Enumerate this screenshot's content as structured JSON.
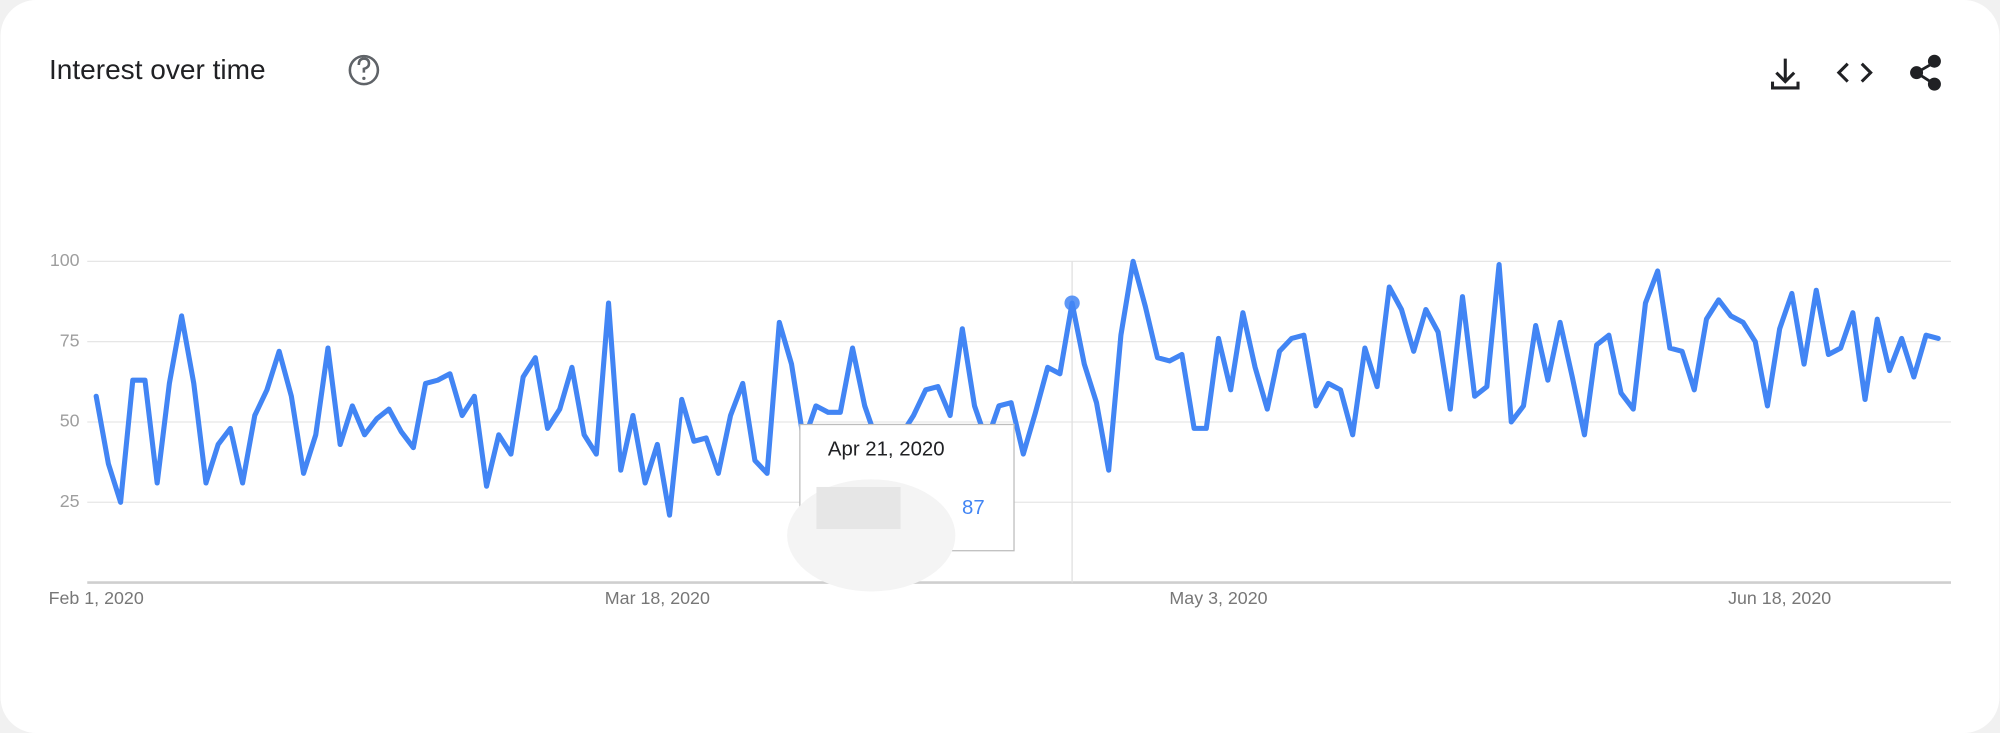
{
  "chart_data": {
    "type": "line",
    "title": "Interest over time",
    "color": "#4285f4",
    "grid": true,
    "x": [
      "2020-02-01",
      "2020-02-02",
      "2020-02-03",
      "2020-02-04",
      "2020-02-05",
      "2020-02-06",
      "2020-02-07",
      "2020-02-08",
      "2020-02-09",
      "2020-02-10",
      "2020-02-11",
      "2020-02-12",
      "2020-02-13",
      "2020-02-14",
      "2020-02-15",
      "2020-02-16",
      "2020-02-17",
      "2020-02-18",
      "2020-02-19",
      "2020-02-20",
      "2020-02-21",
      "2020-02-22",
      "2020-02-23",
      "2020-02-24",
      "2020-02-25",
      "2020-02-26",
      "2020-02-27",
      "2020-02-28",
      "2020-02-29",
      "2020-03-01",
      "2020-03-02",
      "2020-03-03",
      "2020-03-04",
      "2020-03-05",
      "2020-03-06",
      "2020-03-07",
      "2020-03-08",
      "2020-03-09",
      "2020-03-10",
      "2020-03-11",
      "2020-03-12",
      "2020-03-13",
      "2020-03-14",
      "2020-03-15",
      "2020-03-16",
      "2020-03-17",
      "2020-03-18",
      "2020-03-19",
      "2020-03-20",
      "2020-03-21",
      "2020-03-22",
      "2020-03-23",
      "2020-03-24",
      "2020-03-25",
      "2020-03-26",
      "2020-03-27",
      "2020-03-28",
      "2020-03-29",
      "2020-03-30",
      "2020-03-31",
      "2020-04-01",
      "2020-04-02",
      "2020-04-03",
      "2020-04-04",
      "2020-04-05",
      "2020-04-06",
      "2020-04-07",
      "2020-04-08",
      "2020-04-09",
      "2020-04-10",
      "2020-04-11",
      "2020-04-12",
      "2020-04-13",
      "2020-04-14",
      "2020-04-15",
      "2020-04-16",
      "2020-04-17",
      "2020-04-18",
      "2020-04-19",
      "2020-04-20",
      "2020-04-21",
      "2020-04-22",
      "2020-04-23",
      "2020-04-24",
      "2020-04-25",
      "2020-04-26",
      "2020-04-27",
      "2020-04-28",
      "2020-04-29",
      "2020-04-30",
      "2020-05-01",
      "2020-05-02",
      "2020-05-03",
      "2020-05-04",
      "2020-05-05",
      "2020-05-06",
      "2020-05-07",
      "2020-05-08",
      "2020-05-09",
      "2020-05-10",
      "2020-05-11",
      "2020-05-12",
      "2020-05-13",
      "2020-05-14",
      "2020-05-15",
      "2020-05-16",
      "2020-05-17",
      "2020-05-18",
      "2020-05-19",
      "2020-05-20",
      "2020-05-21",
      "2020-05-22",
      "2020-05-23",
      "2020-05-24",
      "2020-05-25",
      "2020-05-26",
      "2020-05-27",
      "2020-05-28",
      "2020-05-29",
      "2020-05-30",
      "2020-05-31",
      "2020-06-01",
      "2020-06-02",
      "2020-06-03",
      "2020-06-04",
      "2020-06-05",
      "2020-06-06",
      "2020-06-07",
      "2020-06-08",
      "2020-06-09",
      "2020-06-10",
      "2020-06-11",
      "2020-06-12",
      "2020-06-13",
      "2020-06-14",
      "2020-06-15",
      "2020-06-16",
      "2020-06-17",
      "2020-06-18",
      "2020-06-19",
      "2020-06-20",
      "2020-06-21",
      "2020-06-22",
      "2020-06-23",
      "2020-06-24",
      "2020-06-25",
      "2020-06-26",
      "2020-06-27",
      "2020-06-28",
      "2020-06-29",
      "2020-06-30",
      "2020-07-01"
    ],
    "values": [
      58,
      37,
      25,
      63,
      63,
      31,
      62,
      83,
      62,
      31,
      43,
      48,
      31,
      52,
      60,
      72,
      58,
      34,
      46,
      73,
      43,
      55,
      46,
      51,
      54,
      47,
      42,
      62,
      63,
      65,
      52,
      58,
      30,
      46,
      40,
      64,
      70,
      48,
      54,
      67,
      46,
      40,
      87,
      35,
      52,
      31,
      43,
      21,
      57,
      44,
      45,
      34,
      52,
      62,
      38,
      34,
      81,
      68,
      44,
      55,
      53,
      53,
      73,
      55,
      44,
      48,
      46,
      52,
      60,
      61,
      52,
      79,
      55,
      44,
      55,
      56,
      40,
      53,
      67,
      65,
      87,
      68,
      56,
      35,
      77,
      100,
      86,
      70,
      69,
      71,
      48,
      48,
      76,
      60,
      84,
      67,
      54,
      72,
      76,
      77,
      55,
      62,
      60,
      46,
      73,
      61,
      92,
      85,
      72,
      85,
      78,
      54,
      89,
      58,
      61,
      99,
      50,
      55,
      80,
      63,
      81,
      64,
      46,
      74,
      77,
      59,
      54,
      87,
      97,
      73,
      72,
      60,
      82,
      88,
      83,
      81,
      75,
      55,
      79,
      90,
      68,
      91,
      71,
      73,
      84,
      57,
      82,
      66,
      76,
      64,
      77,
      76
    ],
    "xlim": [
      "2020-02-01",
      "2020-07-01"
    ],
    "xticks": [
      {
        "value": "2020-02-01",
        "label": "Feb 1, 2020"
      },
      {
        "value": "2020-03-18",
        "label": "Mar 18, 2020"
      },
      {
        "value": "2020-05-03",
        "label": "May 3, 2020"
      },
      {
        "value": "2020-06-18",
        "label": "Jun 18, 2020"
      }
    ],
    "ylim": [
      0,
      100
    ],
    "yticks": [
      25,
      50,
      75,
      100
    ],
    "tooltip": {
      "date": "Apr 21, 2020",
      "x": "2020-04-21",
      "value": 87
    }
  }
}
